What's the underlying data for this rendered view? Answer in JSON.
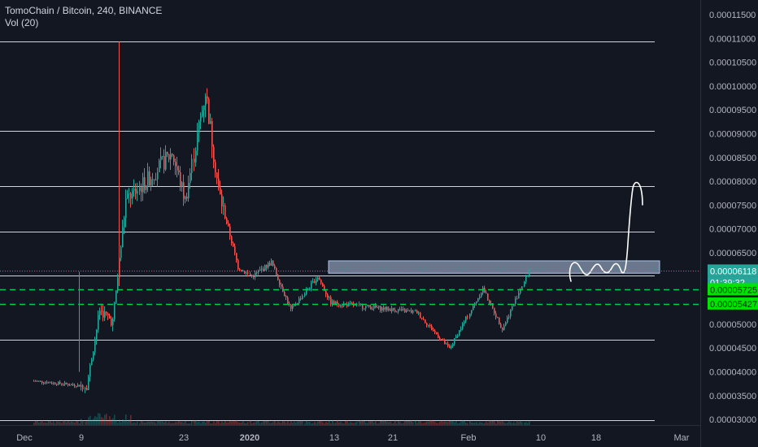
{
  "header": {
    "symbol_line": "TomoChain / Bitcoin, 240, BINANCE",
    "indicator_line": "Vol (20)"
  },
  "colors": {
    "background": "#131722",
    "up": "#26a69a",
    "down": "#ef5350",
    "horizontal_line": "#d1d4dc",
    "support_dashed": "#00c853",
    "zone_fill": "#b2c6e6",
    "last_price_bg": "#26a69a",
    "support_label_bg": "#00e200",
    "axis_text": "#b2b5be",
    "drawing": "#ffffff"
  },
  "price_axis": {
    "ticks": [
      "0.00011500",
      "0.00011000",
      "0.00010500",
      "0.00010000",
      "0.00009500",
      "0.00009000",
      "0.00008500",
      "0.00008000",
      "0.00007500",
      "0.00007000",
      "0.00006500",
      "0.00006000",
      "0.00005500",
      "0.00005000",
      "0.00004500",
      "0.00004000",
      "0.00003500",
      "0.00003000"
    ],
    "last_price_label": "0.00006118",
    "countdown_label": "01:39:32",
    "support_labels": [
      "0.00005725",
      "0.00005427"
    ]
  },
  "time_axis": {
    "labels": [
      "Dec",
      "9",
      "23",
      "2020",
      "13",
      "21",
      "Feb",
      "10",
      "18",
      "Mar"
    ]
  },
  "chart_data": {
    "type": "candlestick",
    "symbol": "TomoChain / Bitcoin",
    "timeframe": "240",
    "exchange": "BINANCE",
    "ylim": [
      2.9e-05,
      1.17e-05
    ],
    "x_ticks": [
      "Dec",
      "9",
      "23",
      "2020",
      "13",
      "21",
      "Feb",
      "10",
      "18",
      "Mar"
    ],
    "horizontal_levels": [
      0.0001093,
      9.06e-05,
      7.9e-05,
      6.94e-05,
      6.02e-05,
      4.67e-05,
      2.98e-05
    ],
    "dashed_support_levels": [
      5.725e-05,
      5.427e-05
    ],
    "resistance_zone": [
      6.07e-05,
      6.33e-05
    ],
    "last_price": 6.118e-05,
    "price_path_anchors": [
      {
        "date": "Dec 1",
        "price": 3.81e-05
      },
      {
        "date": "Dec 9",
        "price": 3.7e-05
      },
      {
        "date": "Dec 11",
        "price": 5.3e-05
      },
      {
        "date": "Dec 13",
        "price": 5.05e-05
      },
      {
        "date": "Dec 15",
        "price": 7.6e-05
      },
      {
        "date": "Dec 18",
        "price": 8e-05
      },
      {
        "date": "Dec 22",
        "price": 8.6e-05
      },
      {
        "date": "Dec 24",
        "price": 7.6e-05
      },
      {
        "date": "Dec 27",
        "price": 9.9e-05
      },
      {
        "date": "Dec 29",
        "price": 7.8e-05
      },
      {
        "date": "Jan 1",
        "price": 6.2e-05
      },
      {
        "date": "Jan 3",
        "price": 6e-05
      },
      {
        "date": "Jan 6",
        "price": 6.3e-05
      },
      {
        "date": "Jan 9",
        "price": 5.3e-05
      },
      {
        "date": "Jan 13",
        "price": 6e-05
      },
      {
        "date": "Jan 15",
        "price": 5.45e-05
      },
      {
        "date": "Jan 28",
        "price": 5.25e-05
      },
      {
        "date": "Feb 2",
        "price": 4.48e-05
      },
      {
        "date": "Feb 7",
        "price": 5.75e-05
      },
      {
        "date": "Feb 10",
        "price": 4.9e-05
      },
      {
        "date": "Feb 14",
        "price": 6.12e-05
      }
    ]
  }
}
